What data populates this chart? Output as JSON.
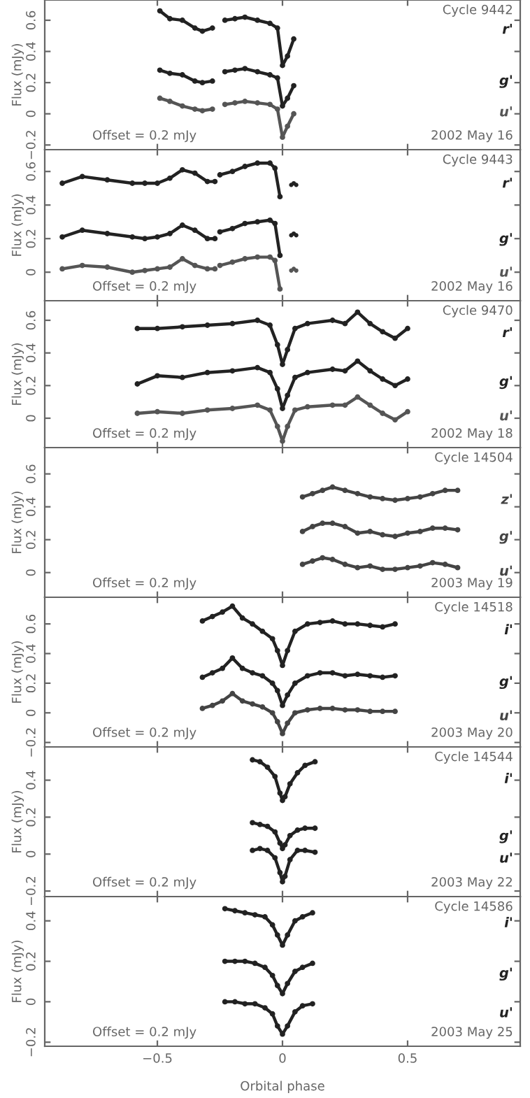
{
  "chart_data": [
    {
      "type": "line",
      "marker": "circle",
      "legend": "right",
      "ylabel": "Flux (mJy)",
      "tick_labels": "y",
      "annotations": [
        "Cycle 9442",
        "Offset = 0.2 mJy",
        "2002 May 16"
      ],
      "xlim": [
        -0.95,
        0.95
      ],
      "xticks": [
        {
          "value": -0.5,
          "label": null
        },
        {
          "value": 0,
          "label": null
        },
        {
          "value": 0.5,
          "label": null
        }
      ],
      "ylim": [
        -0.23,
        0.73
      ],
      "yticks": [
        -0.2,
        0,
        0.2,
        0.4,
        0.6
      ],
      "x": [
        -0.49,
        -0.45,
        -0.4,
        -0.35,
        -0.32,
        -0.28,
        -0.26,
        -0.23,
        -0.19,
        -0.15,
        -0.1,
        -0.05,
        -0.02,
        0,
        0.02,
        0.045
      ],
      "series": [
        {
          "name": "r'",
          "color": "#222222",
          "values": [
            0.66,
            0.61,
            0.6,
            0.55,
            0.53,
            0.55,
            null,
            0.6,
            0.61,
            0.62,
            0.6,
            0.58,
            0.55,
            0.31,
            0.37,
            0.48
          ]
        },
        {
          "name": "g'",
          "color": "#222222",
          "values": [
            0.28,
            0.26,
            0.25,
            0.21,
            0.2,
            0.21,
            null,
            0.27,
            0.28,
            0.29,
            0.27,
            0.25,
            0.23,
            0.05,
            0.1,
            0.18
          ]
        },
        {
          "name": "u'",
          "color": "#555555",
          "values": [
            0.1,
            0.08,
            0.05,
            0.03,
            0.02,
            0.03,
            null,
            0.06,
            0.07,
            0.08,
            0.07,
            0.06,
            0.03,
            -0.15,
            -0.08,
            0.0
          ]
        }
      ]
    },
    {
      "type": "line",
      "marker": "circle",
      "legend": "right",
      "ylabel": "Flux (mJy)",
      "tick_labels": "y",
      "annotations": [
        "Cycle 9443",
        "Offset = 0.2 mJy",
        "2002 May 16"
      ],
      "xlim": [
        -0.95,
        0.95
      ],
      "xticks": [
        {
          "value": -0.5,
          "label": null
        },
        {
          "value": 0,
          "label": null
        },
        {
          "value": 0.5,
          "label": null
        }
      ],
      "ylim": [
        -0.17,
        0.73
      ],
      "yticks": [
        0,
        0.2,
        0.4,
        0.6
      ],
      "x": [
        -0.88,
        -0.8,
        -0.7,
        -0.6,
        -0.55,
        -0.5,
        -0.45,
        -0.4,
        -0.35,
        -0.3,
        -0.27,
        -0.26,
        -0.25,
        -0.2,
        -0.15,
        -0.1,
        -0.05,
        -0.03,
        -0.01
      ],
      "series": [
        {
          "name": "r'",
          "color": "#222222",
          "values": [
            0.53,
            0.57,
            0.55,
            0.53,
            0.53,
            0.53,
            0.56,
            0.61,
            0.59,
            0.54,
            0.54,
            null,
            0.58,
            0.6,
            0.63,
            0.65,
            0.65,
            0.62,
            0.45
          ]
        },
        {
          "name": "g'",
          "color": "#222222",
          "values": [
            0.21,
            0.25,
            0.23,
            0.21,
            0.2,
            0.21,
            0.23,
            0.28,
            0.25,
            0.2,
            0.2,
            null,
            0.24,
            0.26,
            0.29,
            0.3,
            0.31,
            0.29,
            0.1
          ]
        },
        {
          "name": "u'",
          "color": "#555555",
          "values": [
            0.02,
            0.04,
            0.03,
            0.0,
            0.01,
            0.02,
            0.03,
            0.08,
            0.04,
            0.02,
            0.02,
            null,
            0.04,
            0.06,
            0.08,
            0.09,
            0.09,
            0.07,
            -0.1
          ]
        },
        {
          "type": "scatter",
          "color": "#222222",
          "x": [
            0.035,
            0.045,
            0.055
          ],
          "values": [
            0.52,
            0.53,
            0.52
          ]
        },
        {
          "type": "scatter",
          "color": "#222222",
          "x": [
            0.035,
            0.045,
            0.055
          ],
          "values": [
            0.22,
            0.23,
            0.22
          ]
        },
        {
          "type": "scatter",
          "color": "#555555",
          "x": [
            0.035,
            0.045,
            0.055
          ],
          "values": [
            0.01,
            0.02,
            0.01
          ]
        }
      ]
    },
    {
      "type": "line",
      "marker": "circle",
      "legend": "right",
      "ylabel": "Flux (mJy)",
      "tick_labels": "y",
      "annotations": [
        "Cycle 9470",
        "Offset = 0.2 mJy",
        "2002 May 18"
      ],
      "xlim": [
        -0.95,
        0.95
      ],
      "xticks": [
        {
          "value": -0.5,
          "label": null
        },
        {
          "value": 0,
          "label": null
        },
        {
          "value": 0.5,
          "label": null
        }
      ],
      "ylim": [
        -0.18,
        0.72
      ],
      "yticks": [
        0,
        0.2,
        0.4,
        0.6
      ],
      "x": [
        -0.58,
        -0.5,
        -0.4,
        -0.3,
        -0.2,
        -0.1,
        -0.05,
        -0.02,
        0,
        0.02,
        0.05,
        0.1,
        0.2,
        0.25,
        0.3,
        0.35,
        0.4,
        0.45,
        0.5
      ],
      "series": [
        {
          "name": "r'",
          "color": "#222222",
          "values": [
            0.55,
            0.55,
            0.56,
            0.57,
            0.58,
            0.6,
            0.57,
            0.45,
            0.33,
            0.42,
            0.55,
            0.58,
            0.6,
            0.58,
            0.65,
            0.58,
            0.53,
            0.49,
            0.55
          ]
        },
        {
          "name": "g'",
          "color": "#222222",
          "values": [
            0.21,
            0.26,
            0.25,
            0.28,
            0.29,
            0.31,
            0.28,
            0.18,
            0.06,
            0.14,
            0.25,
            0.28,
            0.3,
            0.29,
            0.35,
            0.29,
            0.24,
            0.2,
            0.24
          ]
        },
        {
          "name": "u'",
          "color": "#555555",
          "values": [
            0.03,
            0.04,
            0.03,
            0.05,
            0.06,
            0.08,
            0.05,
            -0.05,
            -0.14,
            -0.05,
            0.05,
            0.07,
            0.08,
            0.08,
            0.13,
            0.08,
            0.03,
            -0.01,
            0.04
          ]
        }
      ]
    },
    {
      "type": "line",
      "marker": "circle",
      "legend": "right",
      "ylabel": "Flux (mJy)",
      "tick_labels": "y",
      "annotations": [
        "Cycle 14504",
        "Offset = 0.2 mJy",
        "2003 May 19"
      ],
      "xlim": [
        -0.95,
        0.95
      ],
      "xticks": [
        {
          "value": -0.5,
          "label": null
        },
        {
          "value": 0,
          "label": null
        },
        {
          "value": 0.5,
          "label": null
        }
      ],
      "ylim": [
        -0.15,
        0.76
      ],
      "yticks": [
        0,
        0.2,
        0.4,
        0.6
      ],
      "x": [
        0.08,
        0.12,
        0.16,
        0.2,
        0.25,
        0.3,
        0.35,
        0.4,
        0.45,
        0.5,
        0.55,
        0.6,
        0.65,
        0.7
      ],
      "series": [
        {
          "name": "z'",
          "color": "#444444",
          "values": [
            0.46,
            0.48,
            0.5,
            0.52,
            0.5,
            0.48,
            0.46,
            0.45,
            0.44,
            0.45,
            0.46,
            0.48,
            0.5,
            0.5
          ]
        },
        {
          "name": "g'",
          "color": "#444444",
          "values": [
            0.25,
            0.28,
            0.3,
            0.3,
            0.28,
            0.24,
            0.25,
            0.23,
            0.22,
            0.24,
            0.25,
            0.27,
            0.27,
            0.26
          ]
        },
        {
          "name": "u'",
          "color": "#444444",
          "values": [
            0.05,
            0.07,
            0.09,
            0.08,
            0.05,
            0.03,
            0.04,
            0.02,
            0.02,
            0.03,
            0.04,
            0.06,
            0.05,
            0.03
          ]
        }
      ]
    },
    {
      "type": "line",
      "marker": "circle",
      "legend": "right",
      "ylabel": "Flux (mJy)",
      "tick_labels": "y",
      "annotations": [
        "Cycle 14518",
        "Offset = 0.2 mJy",
        "2003 May 20"
      ],
      "xlim": [
        -0.95,
        0.95
      ],
      "xticks": [
        {
          "value": -0.5,
          "label": null
        },
        {
          "value": 0,
          "label": null
        },
        {
          "value": 0.5,
          "label": null
        }
      ],
      "ylim": [
        -0.23,
        0.78
      ],
      "yticks": [
        -0.2,
        0,
        0.2,
        0.4,
        0.6
      ],
      "x": [
        -0.32,
        -0.28,
        -0.24,
        -0.2,
        -0.16,
        -0.12,
        -0.08,
        -0.04,
        -0.02,
        0,
        0.02,
        0.05,
        0.1,
        0.15,
        0.2,
        0.25,
        0.3,
        0.35,
        0.4,
        0.45
      ],
      "series": [
        {
          "name": "i'",
          "color": "#222222",
          "values": [
            0.62,
            0.65,
            0.68,
            0.72,
            0.64,
            0.6,
            0.55,
            0.5,
            0.42,
            0.32,
            0.42,
            0.55,
            0.6,
            0.61,
            0.62,
            0.6,
            0.6,
            0.59,
            0.58,
            0.6
          ]
        },
        {
          "name": "g'",
          "color": "#222222",
          "values": [
            0.24,
            0.27,
            0.3,
            0.37,
            0.3,
            0.27,
            0.25,
            0.2,
            0.15,
            0.05,
            0.12,
            0.2,
            0.25,
            0.27,
            0.27,
            0.25,
            0.26,
            0.25,
            0.24,
            0.25
          ]
        },
        {
          "name": "u'",
          "color": "#444444",
          "values": [
            0.03,
            0.05,
            0.08,
            0.13,
            0.08,
            0.06,
            0.04,
            0.0,
            -0.06,
            -0.14,
            -0.07,
            0.0,
            0.02,
            0.03,
            0.03,
            0.02,
            0.02,
            0.01,
            0.01,
            0.01
          ]
        }
      ]
    },
    {
      "type": "line",
      "marker": "circle",
      "legend": "right",
      "ylabel": "Flux (mJy)",
      "tick_labels": "y",
      "annotations": [
        "Cycle 14544",
        "Offset = 0.2 mJy",
        "2003 May 22"
      ],
      "xlim": [
        -0.95,
        0.95
      ],
      "xticks": [
        {
          "value": -0.5,
          "label": null
        },
        {
          "value": 0,
          "label": null
        },
        {
          "value": 0.5,
          "label": null
        }
      ],
      "ylim": [
        -0.23,
        0.58
      ],
      "yticks": [
        -0.2,
        0,
        0.2,
        0.4
      ],
      "x": [
        -0.12,
        -0.09,
        -0.06,
        -0.03,
        -0.01,
        0,
        0.01,
        0.03,
        0.06,
        0.09,
        0.13
      ],
      "series": [
        {
          "name": "i'",
          "color": "#222222",
          "values": [
            0.51,
            0.5,
            0.47,
            0.42,
            0.33,
            0.29,
            0.31,
            0.38,
            0.44,
            0.48,
            0.5
          ]
        },
        {
          "name": "g'",
          "color": "#222222",
          "values": [
            0.17,
            0.16,
            0.15,
            0.12,
            0.06,
            0.03,
            0.05,
            0.1,
            0.13,
            0.14,
            0.14
          ]
        },
        {
          "name": "u'",
          "color": "#222222",
          "values": [
            0.02,
            0.03,
            0.02,
            -0.02,
            -0.1,
            -0.15,
            -0.12,
            -0.03,
            0.02,
            0.02,
            0.01
          ]
        }
      ]
    },
    {
      "type": "line",
      "marker": "circle",
      "legend": "right",
      "ylabel": "Flux (mJy)",
      "xlabel": "Orbital phase",
      "annotations": [
        "Cycle 14586",
        "Offset = 0.2 mJy",
        "2003 May 25"
      ],
      "xlim": [
        -0.95,
        0.95
      ],
      "xticks": [
        {
          "value": -0.5,
          "label": "−0.5"
        },
        0,
        0.5
      ],
      "ylim": [
        -0.22,
        0.52
      ],
      "yticks": [
        -0.2,
        0,
        0.2,
        0.4
      ],
      "x": [
        -0.23,
        -0.19,
        -0.15,
        -0.11,
        -0.07,
        -0.04,
        -0.02,
        0,
        0.02,
        0.05,
        0.08,
        0.12
      ],
      "series": [
        {
          "name": "i'",
          "color": "#222222",
          "values": [
            0.46,
            0.45,
            0.44,
            0.43,
            0.42,
            0.38,
            0.33,
            0.28,
            0.33,
            0.4,
            0.42,
            0.44
          ]
        },
        {
          "name": "g'",
          "color": "#222222",
          "values": [
            0.2,
            0.2,
            0.2,
            0.19,
            0.17,
            0.13,
            0.08,
            0.04,
            0.09,
            0.15,
            0.17,
            0.19
          ]
        },
        {
          "name": "u'",
          "color": "#222222",
          "values": [
            0.0,
            0.0,
            -0.01,
            -0.01,
            -0.03,
            -0.06,
            -0.12,
            -0.16,
            -0.12,
            -0.05,
            -0.02,
            -0.01
          ]
        }
      ]
    }
  ]
}
